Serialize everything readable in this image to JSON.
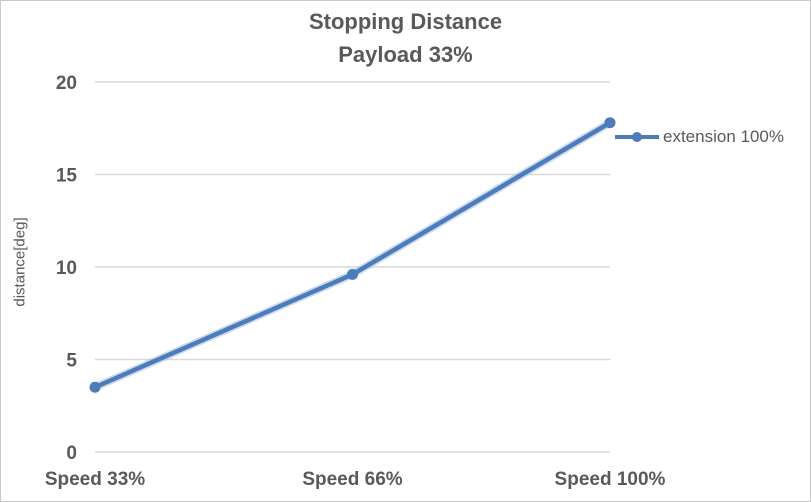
{
  "colors": {
    "text": "#595959",
    "gridline": "#d9d9d9",
    "chart_border": "#c9c9c9",
    "background": "#ffffff",
    "series_line": "#4d7cbb",
    "series_halo": "#a3bee2"
  },
  "chart_data": {
    "type": "line",
    "title": "Stopping Distance Payload 33%",
    "title_lines": [
      "Stopping Distance",
      "Payload 33%"
    ],
    "categories": [
      "Speed 33%",
      "Speed 66%",
      "Speed 100%"
    ],
    "series": [
      {
        "name": "extension 100%",
        "values": [
          3.5,
          9.6,
          17.8
        ],
        "color": "#4d7cbb",
        "marker": "circle"
      }
    ],
    "xlabel": "",
    "ylabel": "distance[deg]",
    "ylim": [
      0,
      20
    ],
    "yticks": [
      0,
      5,
      10,
      15,
      20
    ],
    "grid": true,
    "legend_position": "right"
  }
}
